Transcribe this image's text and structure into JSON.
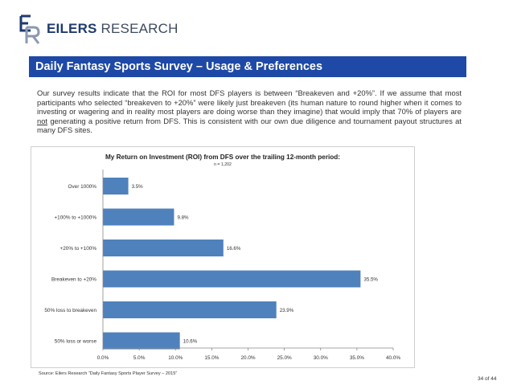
{
  "logo": {
    "brand_part1": "EILERS",
    "brand_part2": " RESEARCH"
  },
  "banner": {
    "title": "Daily Fantasy Sports Survey – Usage & Preferences"
  },
  "body": {
    "part1": "Our survey results indicate that the ROI for most DFS players is between “Breakeven and +20%”. If we assume that most participants who selected “breakeven to +20%” were likely just breakeven (its human nature to round higher when it comes to investing or wagering and in reality most players are doing worse than they imagine) that would imply that 70% of players are ",
    "underlined": "not",
    "part2": " generating a positive return from DFS. This is consistent with our own due diligence and tournament payout structures at many DFS sites."
  },
  "chart_data": {
    "type": "bar",
    "orientation": "horizontal",
    "title": "My Return on Investment (ROI) from DFS over the trailing 12-month period:",
    "subtitle": "n = 1,202",
    "categories": [
      "Over 1000%",
      "+100% to +1000%",
      "+20% to +100%",
      "Breakeven to +20%",
      "50% loss to breakeven",
      "50% loss or worse"
    ],
    "values": [
      3.5,
      9.8,
      16.6,
      35.5,
      23.9,
      10.6
    ],
    "value_labels": [
      "3.5%",
      "9.8%",
      "16.6%",
      "35.5%",
      "23.9%",
      "10.6%"
    ],
    "xlim": [
      0,
      40
    ],
    "xticks": [
      "0.0%",
      "5.0%",
      "10.0%",
      "15.0%",
      "20.0%",
      "25.0%",
      "30.0%",
      "35.0%",
      "40.0%"
    ],
    "bar_color": "#4f81bd",
    "grid": false
  },
  "footer": {
    "source": "Source: Eilers Research “Daily Fantasy Sports Player Survey – 2015”",
    "page": "34 of 44"
  }
}
